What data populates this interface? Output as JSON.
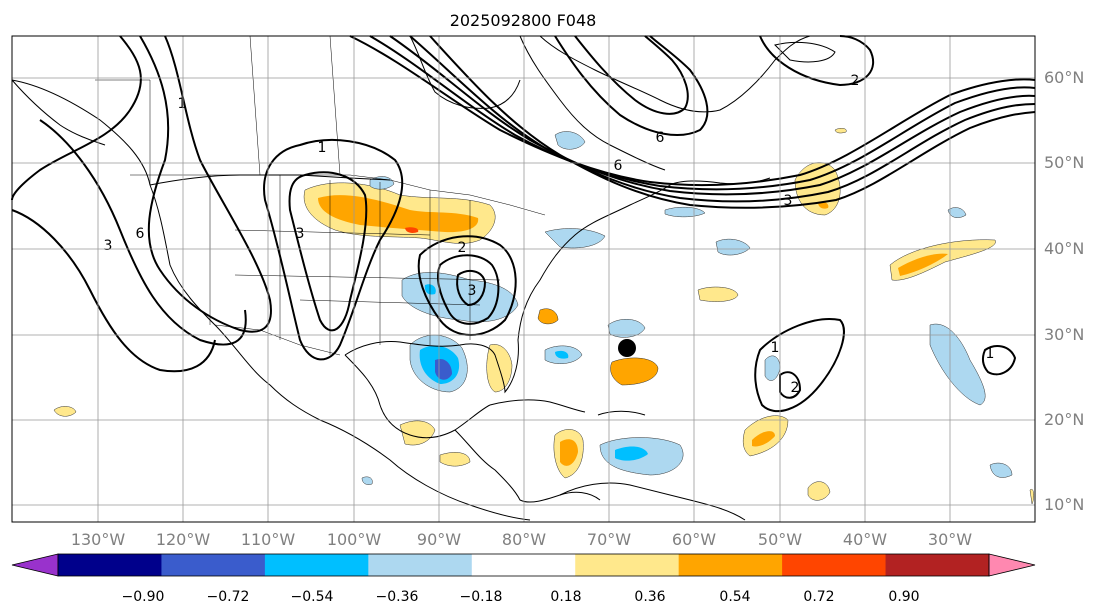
{
  "title": "2025092800 F048",
  "longitude_labels": [
    "130°W",
    "120°W",
    "110°W",
    "100°W",
    "90°W",
    "80°W",
    "70°W",
    "60°W",
    "50°W",
    "40°W",
    "30°W"
  ],
  "latitude_labels": [
    "10°N",
    "20°N",
    "30°N",
    "40°N",
    "50°N",
    "60°N"
  ],
  "colorbar": {
    "colors": [
      "#9932cc",
      "#00008b",
      "#3a5ccc",
      "#00bfff",
      "#add8f0",
      "#ffffff",
      "#ffe88c",
      "#ffa500",
      "#ff4500",
      "#b22222",
      "#ff88b0"
    ],
    "tick_labels": [
      "−0.90",
      "−0.72",
      "−0.54",
      "−0.36",
      "−0.18",
      "0.18",
      "0.36",
      "0.54",
      "0.72",
      "0.90"
    ]
  },
  "contour_labels": [
    "1",
    "1",
    "3",
    "3",
    "6",
    "6",
    "6",
    "3",
    "2",
    "2",
    "1",
    "2",
    "1",
    "3"
  ],
  "marker": "black-dot"
}
